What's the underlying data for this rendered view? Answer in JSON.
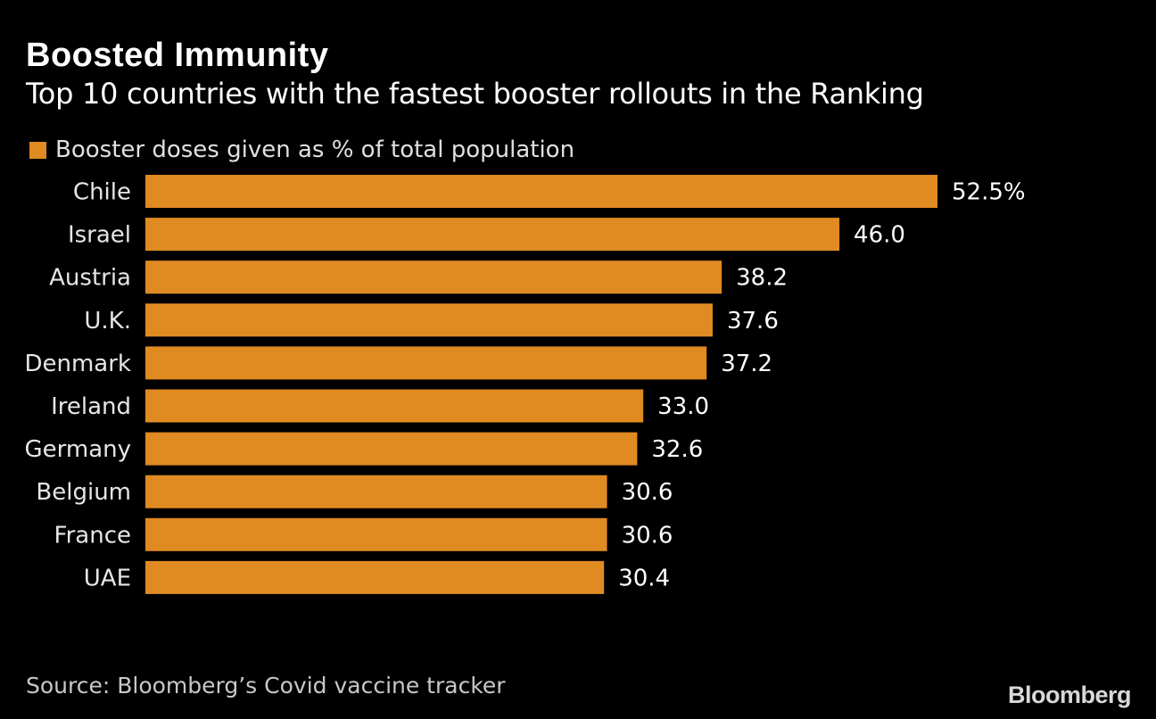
{
  "title": "Boosted Immunity",
  "subtitle": "Top 10 countries with the fastest booster rollouts in the Ranking",
  "legend": {
    "label": "Booster doses given as % of total population"
  },
  "source": "Source: Bloomberg’s Covid vaccine tracker",
  "brand": "Bloomberg",
  "colors": {
    "background": "#000000",
    "bar": "#e08a22",
    "text": "#ffffff"
  },
  "chart_data": {
    "type": "bar",
    "orientation": "horizontal",
    "title": "Boosted Immunity",
    "subtitle": "Top 10 countries with the fastest booster rollouts in the Ranking",
    "categories": [
      "Chile",
      "Israel",
      "Austria",
      "U.K.",
      "Denmark",
      "Ireland",
      "Germany",
      "Belgium",
      "France",
      "UAE"
    ],
    "values": [
      52.5,
      46.0,
      38.2,
      37.6,
      37.2,
      33.0,
      32.6,
      30.6,
      30.6,
      30.4
    ],
    "data_labels": [
      "52.5%",
      "46.0",
      "38.2",
      "37.6",
      "37.2",
      "33.0",
      "32.6",
      "30.6",
      "30.6",
      "30.4"
    ],
    "series_name": "Booster doses given as % of total population",
    "xlabel": "",
    "ylabel": "",
    "xlim": [
      0,
      52.5
    ],
    "grid": false,
    "legend_position": "top-left"
  }
}
